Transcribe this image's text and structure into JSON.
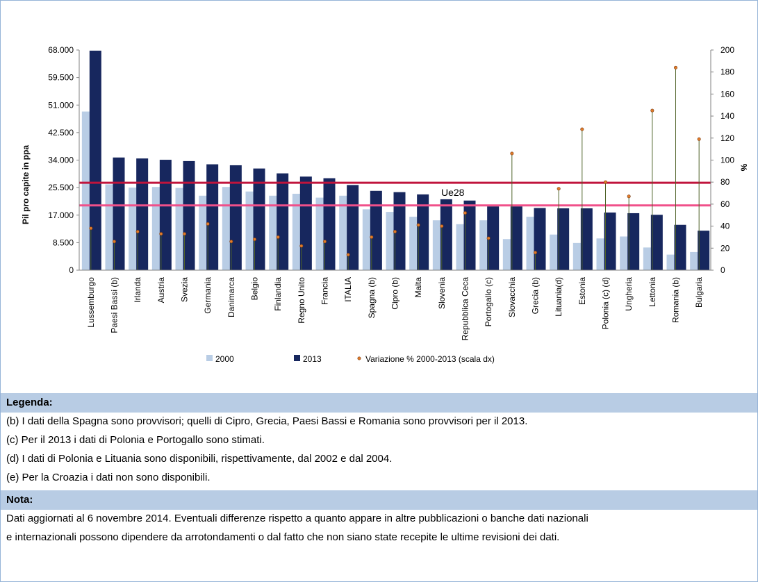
{
  "chart_data": {
    "type": "bar",
    "y_axis_label": "Pil pro capite in ppa",
    "y2_axis_label": "%",
    "categories": [
      "Lussemburgo",
      "Paesi Bassi (b)",
      "Irlanda",
      "Austria",
      "Svezia",
      "Germania",
      "Danimarca",
      "Belgio",
      "Finlandia",
      "Regno Unito",
      "Francia",
      "ITALIA",
      "Spagna (b)",
      "Cipro (b)",
      "Malta",
      "Slovenia",
      "Repubblica Ceca",
      "Portogallo (c)",
      "Slovacchia",
      "Grecia (b)",
      "Lituania(d)",
      "Estonia",
      "Polonia (c) (d)",
      "Ungheria",
      "Lettonia",
      "Romania (b)",
      "Bulgaria"
    ],
    "series": [
      {
        "name": "2000",
        "color": "#b9cde5",
        "values": [
          49000,
          26500,
          25500,
          25700,
          25400,
          23000,
          25700,
          24300,
          23000,
          23600,
          22400,
          23000,
          18800,
          18000,
          16500,
          15400,
          14200,
          15400,
          9600,
          16500,
          11000,
          8400,
          9800,
          10400,
          7000,
          4800,
          5600
        ]
      },
      {
        "name": "2013",
        "color": "#17275e",
        "values": [
          67800,
          34800,
          34500,
          34100,
          33700,
          32700,
          32400,
          31400,
          29900,
          28900,
          28400,
          26300,
          24500,
          24100,
          23400,
          21900,
          21500,
          19700,
          19700,
          19200,
          19100,
          19100,
          17800,
          17600,
          17100,
          14000,
          12200
        ]
      },
      {
        "name": "Variazione % 2000-2013 (scala dx)",
        "color": "#e07b2a",
        "axis": "y2",
        "values": [
          38,
          26,
          35,
          33,
          33,
          42,
          26,
          28,
          30,
          22,
          26,
          14,
          30,
          35,
          41,
          40,
          52,
          29,
          106,
          16,
          74,
          128,
          80,
          67,
          145,
          184,
          119
        ]
      }
    ],
    "reference_lines": [
      {
        "value": 27000,
        "color": "#c0143c"
      },
      {
        "value": 20000,
        "color": "#f0508a"
      }
    ],
    "annotation": "Ue28",
    "ylim": [
      0,
      68000
    ],
    "yticks": [
      0,
      {
        "value": 8500,
        "label": "8.500"
      },
      {
        "value": 17000,
        "label": "17.000"
      },
      {
        "value": 25500,
        "label": "25.500"
      },
      {
        "value": 34000,
        "label": "34.000"
      },
      {
        "value": 42500,
        "label": "42.500"
      },
      {
        "value": 51000,
        "label": "51.000"
      },
      {
        "value": 59500,
        "label": "59.500"
      },
      {
        "value": 68000,
        "label": "68.000"
      }
    ],
    "y2lim": [
      0,
      200
    ],
    "y2ticks": [
      0,
      20,
      40,
      60,
      80,
      100,
      120,
      140,
      160,
      180,
      200
    ]
  },
  "legend_section": {
    "title": "Legenda:",
    "notes": [
      "(b) I dati della Spagna  sono provvisori; quelli di Cipro, Grecia, Paesi Bassi e Romania sono provvisori per il 2013.",
      "(c) Per il 2013 i dati di Polonia e Portogallo sono stimati.",
      "(d) I dati di Polonia e Lituania sono disponibili, rispettivamente, dal 2002 e dal 2004.",
      "(e) Per la Croazia i dati non sono disponibili."
    ]
  },
  "note_section": {
    "title": "Nota:",
    "lines": [
      "Dati aggiornati al 6 novembre 2014. Eventuali differenze rispetto a quanto appare in altre pubblicazioni o banche dati nazionali",
      "e internazionali possono dipendere da arrotondamenti o dal fatto che non siano state recepite le ultime revisioni dei dati."
    ]
  }
}
